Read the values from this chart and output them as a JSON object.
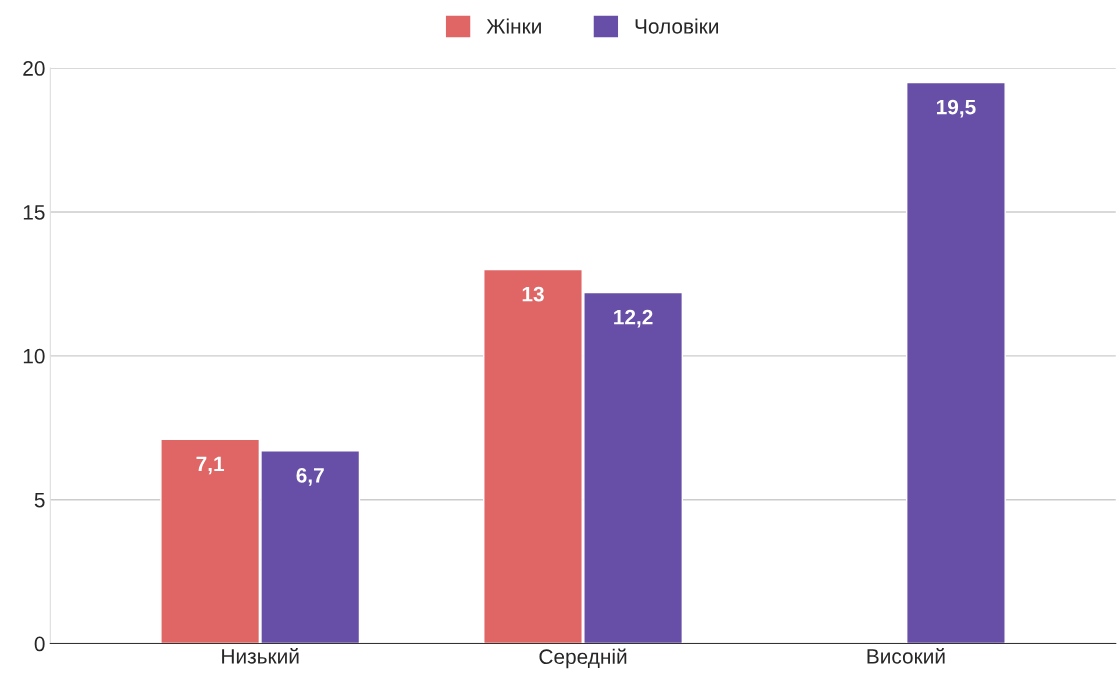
{
  "chart_data": {
    "type": "bar",
    "categories": [
      "Низький",
      "Середній",
      "Високий"
    ],
    "series": [
      {
        "name": "Жінки",
        "color": "#e06666",
        "values": [
          7.1,
          13,
          null
        ],
        "value_labels": [
          "7,1",
          "13",
          null
        ]
      },
      {
        "name": "Чоловіки",
        "color": "#674ea7",
        "values": [
          6.7,
          12.2,
          19.5
        ],
        "value_labels": [
          "6,7",
          "12,2",
          "19,5"
        ]
      }
    ],
    "ylim": [
      0,
      20
    ],
    "yticks": [
      0,
      5,
      10,
      15,
      20
    ],
    "grid": "y",
    "legend": "top"
  }
}
